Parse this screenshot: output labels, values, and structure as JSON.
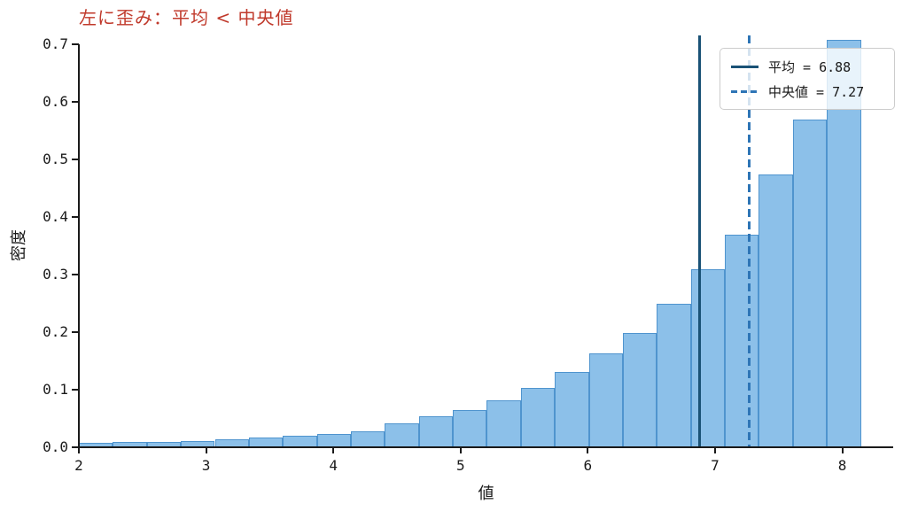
{
  "chart_data": {
    "type": "bar",
    "subtype": "histogram-density",
    "title": "左に歪み：平均 < 中央値",
    "title_color": "#c0392b",
    "xlabel": "値",
    "ylabel": "密度",
    "xlim": [
      2,
      8.4
    ],
    "ylim": [
      0,
      0.715
    ],
    "grid": false,
    "background": "#ffffff",
    "axis_color": "#1a1a1a",
    "bar_fill": "#8cc0e9",
    "bar_edge": "#4f94ce",
    "bin_edges": [
      2.0,
      2.267,
      2.534,
      2.802,
      3.069,
      3.336,
      3.603,
      3.87,
      4.138,
      4.405,
      4.672,
      4.939,
      5.206,
      5.474,
      5.741,
      6.008,
      6.275,
      6.542,
      6.81,
      7.077,
      7.344,
      7.611,
      7.878,
      8.146
    ],
    "densities": [
      0.007,
      0.009,
      0.01,
      0.011,
      0.014,
      0.017,
      0.02,
      0.023,
      0.028,
      0.041,
      0.054,
      0.064,
      0.082,
      0.103,
      0.131,
      0.163,
      0.198,
      0.249,
      0.309,
      0.369,
      0.473,
      0.569,
      0.707
    ],
    "x_ticks": [
      {
        "value": 2,
        "label": "2"
      },
      {
        "value": 3,
        "label": "3"
      },
      {
        "value": 4,
        "label": "4"
      },
      {
        "value": 5,
        "label": "5"
      },
      {
        "value": 6,
        "label": "6"
      },
      {
        "value": 7,
        "label": "7"
      },
      {
        "value": 8,
        "label": "8"
      }
    ],
    "y_ticks": [
      {
        "value": 0.0,
        "label": "0.0"
      },
      {
        "value": 0.1,
        "label": "0.1"
      },
      {
        "value": 0.2,
        "label": "0.2"
      },
      {
        "value": 0.3,
        "label": "0.3"
      },
      {
        "value": 0.4,
        "label": "0.4"
      },
      {
        "value": 0.5,
        "label": "0.5"
      },
      {
        "value": 0.6,
        "label": "0.6"
      },
      {
        "value": 0.7,
        "label": "0.7"
      }
    ],
    "vlines": [
      {
        "name": "mean",
        "value": 6.88,
        "style": "solid",
        "color": "#1a5276",
        "label": "平均 = 6.88"
      },
      {
        "name": "median",
        "value": 7.27,
        "style": "dashed",
        "color": "#2e75b6",
        "label": "中央値 = 7.27"
      }
    ],
    "legend": {
      "position": "upper right"
    }
  }
}
